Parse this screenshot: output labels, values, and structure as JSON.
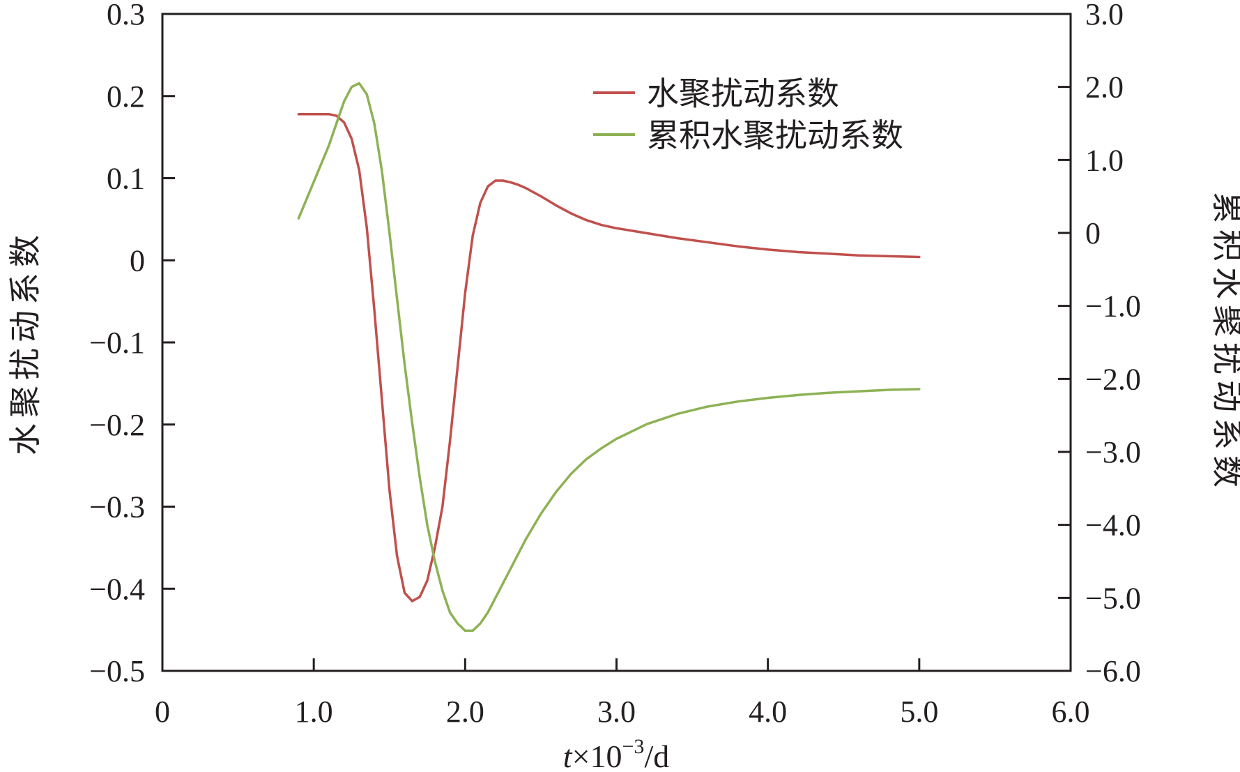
{
  "chart_data": {
    "type": "line",
    "title": "",
    "xlabel": {
      "var": "t",
      "mid": "×10",
      "exp": "−3",
      "unit": "/d"
    },
    "ylabel_left": "水聚扰动系数",
    "ylabel_right": "累积水聚扰动系数",
    "xlim": [
      0,
      6
    ],
    "ylim_left": [
      -0.5,
      0.3
    ],
    "ylim_right": [
      -6,
      3
    ],
    "x_ticks": [
      0,
      1,
      2,
      3,
      4,
      5,
      6
    ],
    "x_tick_labels": [
      "0",
      "1.0",
      "2.0",
      "3.0",
      "4.0",
      "5.0",
      "6.0"
    ],
    "y_left_ticks": [
      -0.5,
      -0.4,
      -0.3,
      -0.2,
      -0.1,
      0,
      0.1,
      0.2,
      0.3
    ],
    "y_left_tick_labels": [
      "−0.5",
      "−0.4",
      "−0.3",
      "−0.2",
      "−0.1",
      "0",
      "0.1",
      "0.2",
      "0.3"
    ],
    "y_right_ticks": [
      -6,
      -5,
      -4,
      -3,
      -2,
      -1,
      0,
      1,
      2,
      3
    ],
    "y_right_tick_labels": [
      "−6.0",
      "−5.0",
      "−4.0",
      "−3.0",
      "−2.0",
      "−1.0",
      "0",
      "1.0",
      "2.0",
      "3.0"
    ],
    "grid": false,
    "legend_position": "top-right",
    "colors": {
      "series1": "#c0504d",
      "series2": "#8db255",
      "axis": "#231f20"
    },
    "series": [
      {
        "name": "水聚扰动系数",
        "axis": "left",
        "x": [
          0.9,
          1.0,
          1.1,
          1.15,
          1.2,
          1.25,
          1.3,
          1.35,
          1.4,
          1.45,
          1.5,
          1.55,
          1.6,
          1.65,
          1.7,
          1.75,
          1.8,
          1.85,
          1.9,
          1.95,
          2.0,
          2.05,
          2.1,
          2.15,
          2.2,
          2.25,
          2.3,
          2.35,
          2.4,
          2.5,
          2.6,
          2.7,
          2.8,
          2.9,
          3.0,
          3.2,
          3.4,
          3.6,
          3.8,
          4.0,
          4.2,
          4.4,
          4.6,
          4.8,
          5.0
        ],
        "y": [
          0.178,
          0.178,
          0.178,
          0.176,
          0.168,
          0.148,
          0.11,
          0.04,
          -0.06,
          -0.17,
          -0.28,
          -0.36,
          -0.405,
          -0.415,
          -0.41,
          -0.39,
          -0.35,
          -0.3,
          -0.22,
          -0.13,
          -0.04,
          0.03,
          0.07,
          0.09,
          0.097,
          0.097,
          0.095,
          0.092,
          0.088,
          0.078,
          0.067,
          0.057,
          0.049,
          0.043,
          0.039,
          0.033,
          0.027,
          0.022,
          0.017,
          0.013,
          0.01,
          0.008,
          0.006,
          0.005,
          0.004
        ]
      },
      {
        "name": "累积水聚扰动系数",
        "axis": "right",
        "x": [
          0.9,
          1.0,
          1.1,
          1.15,
          1.2,
          1.25,
          1.3,
          1.35,
          1.4,
          1.45,
          1.5,
          1.55,
          1.6,
          1.65,
          1.7,
          1.75,
          1.8,
          1.85,
          1.9,
          1.95,
          2.0,
          2.05,
          2.1,
          2.15,
          2.2,
          2.3,
          2.4,
          2.5,
          2.6,
          2.7,
          2.8,
          2.9,
          3.0,
          3.2,
          3.4,
          3.6,
          3.8,
          4.0,
          4.2,
          4.4,
          4.6,
          4.8,
          5.0
        ],
        "y": [
          0.2,
          0.7,
          1.2,
          1.5,
          1.8,
          2.0,
          2.05,
          1.9,
          1.5,
          0.85,
          0.0,
          -0.9,
          -1.8,
          -2.6,
          -3.35,
          -4.0,
          -4.5,
          -4.9,
          -5.2,
          -5.35,
          -5.45,
          -5.45,
          -5.35,
          -5.2,
          -5.0,
          -4.6,
          -4.2,
          -3.85,
          -3.55,
          -3.3,
          -3.1,
          -2.95,
          -2.82,
          -2.62,
          -2.48,
          -2.38,
          -2.31,
          -2.26,
          -2.22,
          -2.19,
          -2.17,
          -2.15,
          -2.14
        ]
      }
    ]
  }
}
